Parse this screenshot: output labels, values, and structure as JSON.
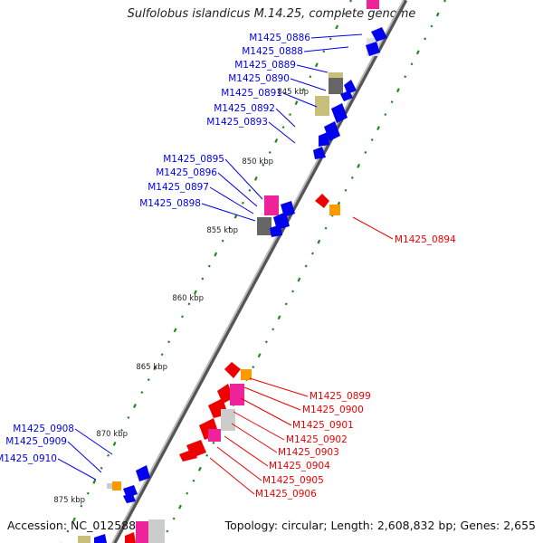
{
  "header": {
    "title": "Sulfolobus islandicus M.14.25, complete genome"
  },
  "footer": {
    "accession": "Accession: NC_012588",
    "topology": "Topology: circular;",
    "length": "Length: 2,608,832 bp;",
    "genes": "Genes: 2,655"
  },
  "scale_ticks": [
    "845 kbp",
    "850 kbp",
    "855 kbp",
    "860 kbp",
    "865 kbp",
    "870 kbp",
    "875 kbp"
  ],
  "left_gene_labels": [
    "M1425_0886",
    "M1425_0888",
    "M1425_0889",
    "M1425_0890",
    "M1425_0891",
    "M1425_0892",
    "M1425_0893",
    "M1425_0895",
    "M1425_0896",
    "M1425_0897",
    "M1425_0898",
    "M1425_0908",
    "M1425_0909",
    "M1425_0910"
  ],
  "right_gene_labels": [
    "M1425_0894",
    "M1425_0899",
    "M1425_0900",
    "M1425_0901",
    "M1425_0902",
    "M1425_0903",
    "M1425_0904",
    "M1425_0905",
    "M1425_0906"
  ],
  "colors": {
    "forward_strand": "#0000ee",
    "reverse_strand": "#ee0000",
    "pink": "#ee2299",
    "khaki": "#c8c07a",
    "gray": "#777777",
    "lightgray": "#cccccc",
    "orange": "#ff9900",
    "gc_marks": "#228822",
    "backbone": "#888888"
  }
}
